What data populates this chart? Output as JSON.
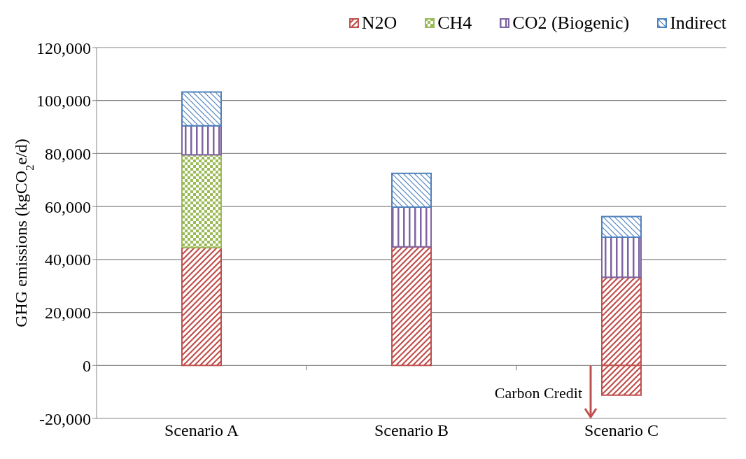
{
  "chart_data": {
    "type": "bar",
    "stacked": true,
    "ylabel": "GHG emissions (kgCO$_{2}$e/d)",
    "categories": [
      "Scenario A",
      "Scenario B",
      "Scenario C"
    ],
    "series": [
      {
        "name": "N2O",
        "color": "#c0504d",
        "values": [
          44500,
          44800,
          33300
        ]
      },
      {
        "name": "CH4",
        "color": "#9bbb59",
        "values": [
          35000,
          null,
          null
        ]
      },
      {
        "name": "CO2 (Biogenic)",
        "color": "#8064a2",
        "values": [
          11000,
          15000,
          15100
        ]
      },
      {
        "name": "Indirect",
        "color": "#4f81bd",
        "values": [
          12700,
          12700,
          7800
        ]
      },
      {
        "color": "#c0504d",
        "values": [
          null,
          null,
          -11200
        ]
      }
    ],
    "ylim": [
      -20000,
      120000
    ],
    "yticks": [
      {
        "value": -20000,
        "label": "-20,000"
      },
      {
        "value": 0,
        "label": "0"
      },
      {
        "value": 20000,
        "label": "20,000"
      },
      {
        "value": 40000,
        "label": "40,000"
      },
      {
        "value": 60000,
        "label": "60,000"
      },
      {
        "value": 80000,
        "label": "80,000"
      },
      {
        "value": 100000,
        "label": "100,000"
      },
      {
        "value": 120000,
        "label": "120,000"
      }
    ],
    "grid": "y",
    "legend": "top",
    "annotations": [
      "Carbon Credit"
    ]
  }
}
